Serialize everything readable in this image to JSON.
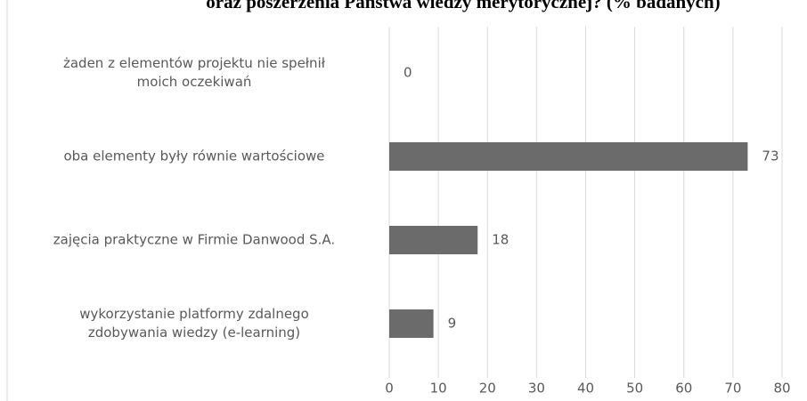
{
  "chart_data": {
    "type": "bar",
    "orientation": "horizontal",
    "title": "oraz poszerzenia Państwa wiedzy merytorycznej? (% badanych)",
    "categories": [
      "żaden z elementów projektu nie spełnił\nmoich oczekiwań",
      "oba elementy były równie wartościowe",
      "zajęcia praktyczne w Firmie Danwood S.A.",
      "wykorzystanie platformy zdalnego\nzdobywania wiedzy (e-learning)"
    ],
    "values": [
      0,
      73,
      18,
      9
    ],
    "color": "#6b6b6b",
    "xlim": [
      0,
      80
    ],
    "xticks": [
      0,
      10,
      20,
      30,
      40,
      50,
      60,
      70,
      80
    ],
    "grid": true
  }
}
